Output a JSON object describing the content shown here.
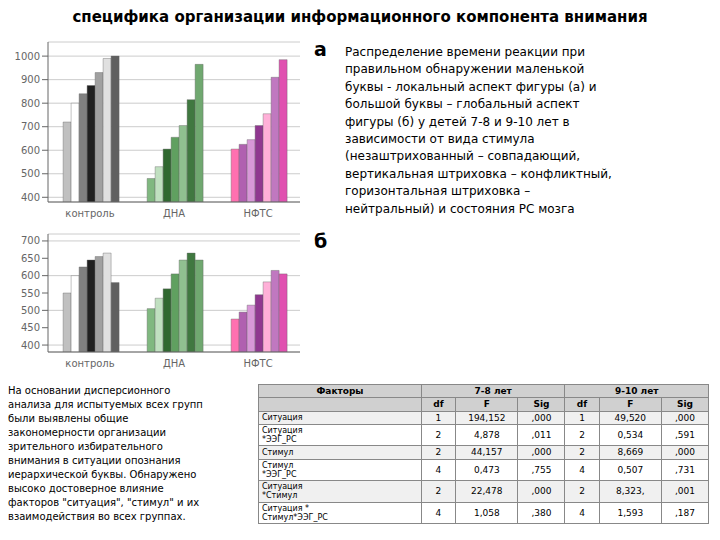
{
  "title": "специфика организации информационного компонента внимания",
  "chart_data": [
    {
      "type": "bar",
      "categories": [
        "контроль",
        "ДНА",
        "НФТС"
      ],
      "ylim": [
        380,
        1060
      ],
      "yticks": [
        400,
        500,
        600,
        700,
        800,
        900,
        1000
      ],
      "grid": true,
      "annotations": [
        "а"
      ],
      "series": [
        {
          "values": [
            720,
            480,
            605
          ],
          "colors": [
            "#C0C0C0",
            "#80B880",
            "#FF70B0"
          ]
        },
        {
          "values": [
            800,
            530,
            625
          ],
          "colors": [
            "#FFFFFF",
            "#C0E0C0",
            "#B060B0"
          ]
        },
        {
          "values": [
            840,
            605,
            645
          ],
          "colors": [
            "#808080",
            "#306830",
            "#D898D8"
          ]
        },
        {
          "values": [
            875,
            655,
            705
          ],
          "colors": [
            "#202020",
            "#60A060",
            "#903890"
          ]
        },
        {
          "values": [
            930,
            705,
            755
          ],
          "colors": [
            "#A0A0A0",
            "#90C090",
            "#FFB0D8"
          ]
        },
        {
          "values": [
            990,
            815,
            910
          ],
          "colors": [
            "#E0E0E0",
            "#407840",
            "#C078C0"
          ]
        },
        {
          "values": [
            1000,
            965,
            985
          ],
          "colors": [
            "#606060",
            "#70A870",
            "#E050B0"
          ]
        }
      ]
    },
    {
      "type": "bar",
      "categories": [
        "контроль",
        "ДНА",
        "НФТС"
      ],
      "ylim": [
        380,
        720
      ],
      "yticks": [
        400,
        450,
        500,
        550,
        600,
        650,
        700
      ],
      "grid": true,
      "annotations": [
        "б"
      ],
      "series": [
        {
          "values": [
            550,
            505,
            475
          ],
          "colors": [
            "#C0C0C0",
            "#80B880",
            "#FF70B0"
          ]
        },
        {
          "values": [
            600,
            535,
            495
          ],
          "colors": [
            "#FFFFFF",
            "#C0E0C0",
            "#B060B0"
          ]
        },
        {
          "values": [
            625,
            562,
            515
          ],
          "colors": [
            "#808080",
            "#306830",
            "#D898D8"
          ]
        },
        {
          "values": [
            645,
            605,
            545
          ],
          "colors": [
            "#202020",
            "#60A060",
            "#903890"
          ]
        },
        {
          "values": [
            655,
            645,
            582
          ],
          "colors": [
            "#A0A0A0",
            "#90C090",
            "#FFB0D8"
          ]
        },
        {
          "values": [
            665,
            665,
            615
          ],
          "colors": [
            "#E0E0E0",
            "#407840",
            "#C078C0"
          ]
        },
        {
          "values": [
            580,
            645,
            605
          ],
          "colors": [
            "#606060",
            "#70A870",
            "#E050B0"
          ]
        }
      ]
    }
  ],
  "annotations": [
    [
      "Распределение времени реакции при",
      "правильном обнаружении маленькой",
      "буквы - локальный аспект фигуры (а) и",
      "большой буквы – глобальный аспект",
      "фигуры (б) у детей 7-8 и 9-10 лет в",
      "зависимости от вида стимула",
      "(незаштрихованный – совпадающий,",
      "вертикальная штриховка – конфликтный,",
      "горизонтальная штриховка –",
      "нейтральный) и состояния РС мозга"
    ],
    [
      "На основании дисперсионного",
      "анализа для испытуемых всех групп",
      "были выявлены общие",
      "закономерности организации",
      "зрительного избирательного",
      "внимания в ситуации опознания",
      "иерархической буквы. Обнаружено",
      "высоко достоверное влияние",
      "факторов \"ситуация\", \"стимул\" и их",
      "взаимодействия во всех группах."
    ]
  ],
  "table": {
    "header": [
      "Факторы",
      "7-8 лет",
      "9-10 лет"
    ],
    "subheaders": [
      "df",
      "F",
      "Sig",
      "df",
      "F",
      "Sig"
    ],
    "rows": [
      [
        "Ситуация",
        "1",
        "194,152",
        ",000",
        "1",
        "49,520",
        ",000"
      ],
      [
        "Ситуация\n*ЭЭГ_РС",
        "2",
        "4,878",
        ",011",
        "2",
        "0,534",
        ",591"
      ],
      [
        "Стимул",
        "2",
        "44,157",
        ",000",
        "2",
        "8,669",
        ",000"
      ],
      [
        "Стимул\n*ЭЭГ_РС",
        "4",
        "0,473",
        ",755",
        "4",
        "0,507",
        ",731"
      ],
      [
        "Ситуация\n*Стимул",
        "2",
        "22,478",
        ",000",
        "2",
        "8,323,",
        ",001"
      ],
      [
        "Ситуация *\nСтимул*ЭЭГ_РС",
        "4",
        "1,058",
        ",380",
        "4",
        "1,593",
        ",187"
      ]
    ]
  }
}
